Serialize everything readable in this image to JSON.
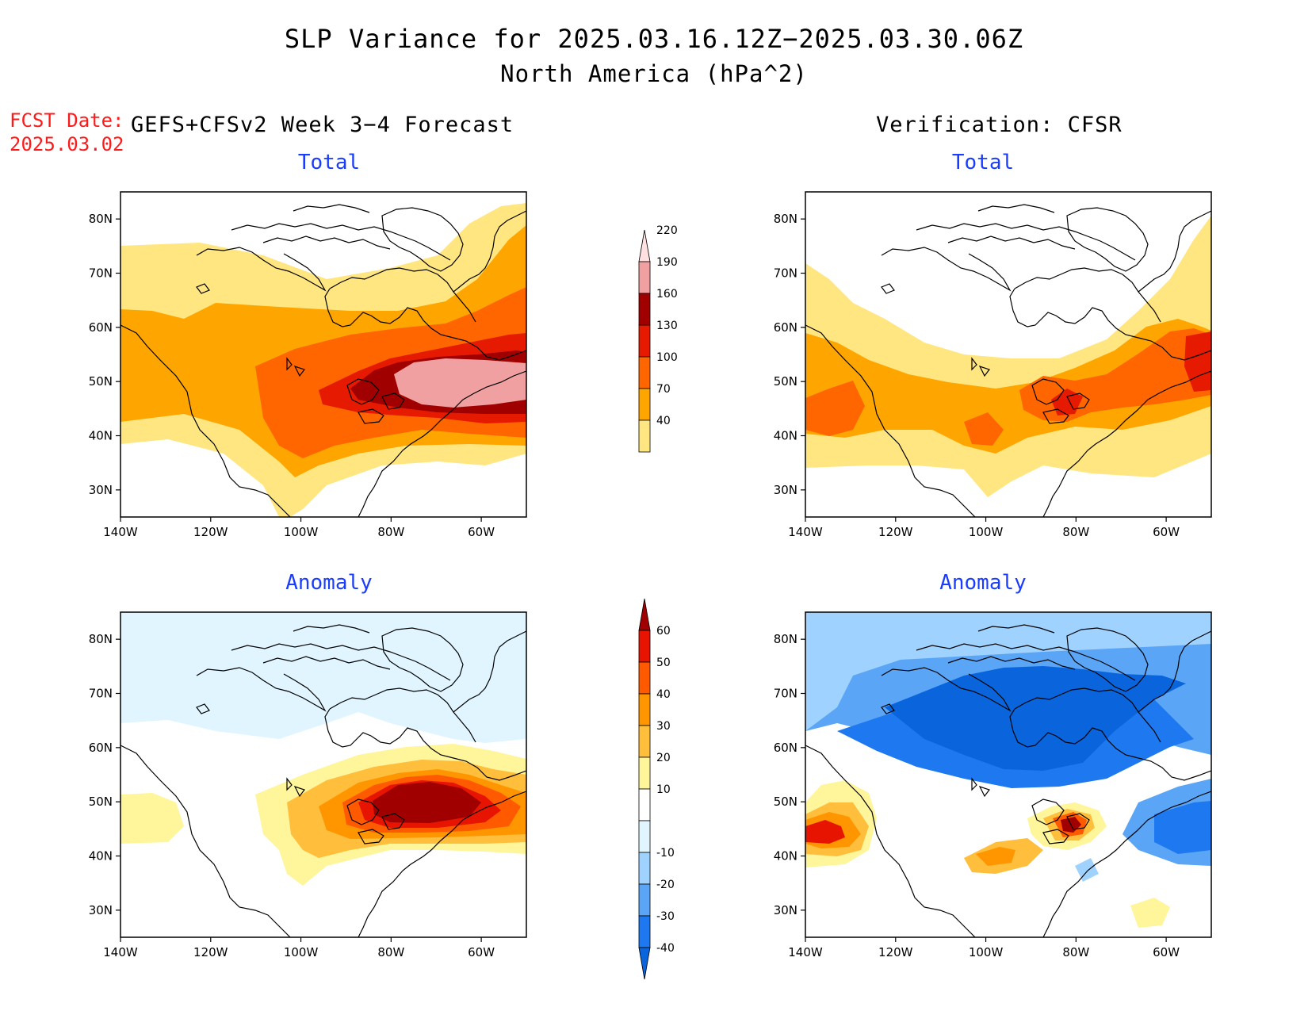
{
  "title": "SLP Variance for 2025.03.16.12Z−2025.03.30.06Z",
  "subtitle": "North America (hPa^2)",
  "fcst_label": "FCST Date:",
  "fcst_date": "2025.03.02",
  "forecast_label": "GEFS+CFSv2 Week 3−4 Forecast",
  "verification_label": "Verification: CFSR",
  "panels": [
    {
      "id": "fcst-total",
      "title": "Total"
    },
    {
      "id": "verif-total",
      "title": "Total"
    },
    {
      "id": "fcst-anom",
      "title": "Anomaly"
    },
    {
      "id": "verif-anom",
      "title": "Anomaly"
    }
  ],
  "axes": {
    "lat_ticks": [
      "30N",
      "40N",
      "50N",
      "60N",
      "70N",
      "80N"
    ],
    "lon_ticks": [
      "140W",
      "120W",
      "100W",
      "80W",
      "60W"
    ]
  },
  "colorbars": {
    "total": {
      "levels": [
        "40",
        "70",
        "100",
        "130",
        "160",
        "190",
        "220"
      ],
      "colors": [
        "#ffe680",
        "#ffa500",
        "#ff6600",
        "#e61a00",
        "#a00000",
        "#f0a0a0",
        "#ffe0e0"
      ]
    },
    "anomaly": {
      "levels": [
        "-40",
        "-30",
        "-20",
        "-10",
        "10",
        "20",
        "30",
        "40",
        "50",
        "60"
      ],
      "colors": [
        "#0a64dc",
        "#1e78f0",
        "#5aa5f5",
        "#a0d2ff",
        "#e0f5ff",
        "#ffffff",
        "#fff59b",
        "#ffbe3c",
        "#ff9600",
        "#ff5a00",
        "#e61400",
        "#a00000"
      ]
    }
  }
}
